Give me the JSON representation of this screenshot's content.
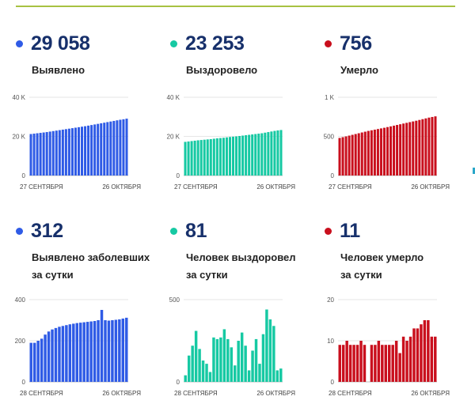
{
  "colors": {
    "blue": "#2f5be6",
    "teal": "#16c9a3",
    "red": "#c90f1d",
    "number": "#17306b",
    "rule": "#a8c242"
  },
  "panels": [
    {
      "value": "29 058",
      "label": [
        "Выявлено"
      ],
      "color": "#2f5be6",
      "chart_data": {
        "type": "bar",
        "ylim": [
          0,
          40000
        ],
        "yticks": [
          {
            "v": 40000,
            "t": "40 K"
          },
          {
            "v": 20000,
            "t": "20 K"
          },
          {
            "v": 0,
            "t": "0"
          }
        ],
        "x_start": "27 СЕНТЯБРЯ",
        "x_end": "26 ОКТЯБРЯ",
        "values": [
          21200,
          21400,
          21600,
          21800,
          22000,
          22200,
          22450,
          22700,
          22950,
          23200,
          23450,
          23700,
          23950,
          24200,
          24450,
          24700,
          24950,
          25200,
          25500,
          25800,
          26100,
          26400,
          26700,
          27000,
          27300,
          27600,
          27900,
          28200,
          28500,
          28750,
          29058
        ]
      }
    },
    {
      "value": "23 253",
      "label": [
        "Выздоровело"
      ],
      "color": "#16c9a3",
      "chart_data": {
        "type": "bar",
        "ylim": [
          0,
          40000
        ],
        "yticks": [
          {
            "v": 40000,
            "t": "40 K"
          },
          {
            "v": 20000,
            "t": "20 K"
          },
          {
            "v": 0,
            "t": "0"
          }
        ],
        "x_start": "27 СЕНТЯБРЯ",
        "x_end": "26 ОКТЯБРЯ",
        "values": [
          17200,
          17400,
          17600,
          17800,
          18000,
          18150,
          18300,
          18450,
          18600,
          18800,
          19000,
          19150,
          19300,
          19500,
          19700,
          19850,
          20000,
          20200,
          20400,
          20600,
          20800,
          21000,
          21200,
          21400,
          21600,
          21900,
          22200,
          22500,
          22800,
          23050,
          23253
        ]
      }
    },
    {
      "value": "756",
      "label": [
        "Умерло"
      ],
      "color": "#c90f1d",
      "chart_data": {
        "type": "bar",
        "ylim": [
          0,
          1000
        ],
        "yticks": [
          {
            "v": 1000,
            "t": "1 K"
          },
          {
            "v": 500,
            "t": "500"
          },
          {
            "v": 0,
            "t": "0"
          }
        ],
        "x_start": "27 СЕНТЯБРЯ",
        "x_end": "26 ОКТЯБРЯ",
        "values": [
          480,
          490,
          500,
          510,
          520,
          530,
          540,
          550,
          560,
          570,
          578,
          586,
          594,
          602,
          610,
          619,
          628,
          637,
          646,
          655,
          664,
          673,
          682,
          691,
          700,
          710,
          720,
          730,
          740,
          748,
          756
        ]
      }
    },
    {
      "value": "312",
      "label": [
        "Выявлено заболевших",
        "за сутки"
      ],
      "color": "#2f5be6",
      "chart_data": {
        "type": "bar",
        "ylim": [
          0,
          400
        ],
        "yticks": [
          {
            "v": 400,
            "t": "400"
          },
          {
            "v": 200,
            "t": "200"
          },
          {
            "v": 0,
            "t": "0"
          }
        ],
        "x_start": "28 СЕНТЯБРЯ",
        "x_end": "26 ОКТЯБРЯ",
        "values": [
          190,
          190,
          200,
          210,
          230,
          245,
          255,
          262,
          268,
          272,
          276,
          280,
          283,
          286,
          288,
          290,
          292,
          294,
          296,
          300,
          350,
          300,
          298,
          300,
          302,
          304,
          308,
          312
        ]
      }
    },
    {
      "value": "81",
      "label": [
        "Человек выздоровел",
        "за сутки"
      ],
      "color": "#16c9a3",
      "chart_data": {
        "type": "bar",
        "ylim": [
          0,
          500
        ],
        "yticks": [
          {
            "v": 500,
            "t": "500"
          },
          {
            "v": 0,
            "t": "0"
          }
        ],
        "x_start": "28 СЕНТЯБРЯ",
        "x_end": "26 ОКТЯБРЯ",
        "values": [
          40,
          160,
          220,
          310,
          200,
          130,
          110,
          60,
          270,
          260,
          270,
          320,
          260,
          210,
          100,
          250,
          300,
          220,
          70,
          190,
          260,
          110,
          290,
          440,
          380,
          340,
          70,
          81
        ]
      }
    },
    {
      "value": "11",
      "label": [
        "Человек умерло",
        "за сутки"
      ],
      "color": "#c90f1d",
      "chart_data": {
        "type": "bar",
        "ylim": [
          0,
          20
        ],
        "yticks": [
          {
            "v": 20,
            "t": "20"
          },
          {
            "v": 10,
            "t": "10"
          },
          {
            "v": 0,
            "t": "0"
          }
        ],
        "x_start": "28 СЕНТЯБРЯ",
        "x_end": "26 ОКТЯБРЯ",
        "values": [
          9,
          9,
          10,
          9,
          9,
          9,
          10,
          9,
          0,
          9,
          9,
          10,
          9,
          9,
          9,
          9,
          10,
          7,
          11,
          10,
          11,
          13,
          13,
          14,
          15,
          15,
          11,
          11
        ]
      }
    }
  ]
}
